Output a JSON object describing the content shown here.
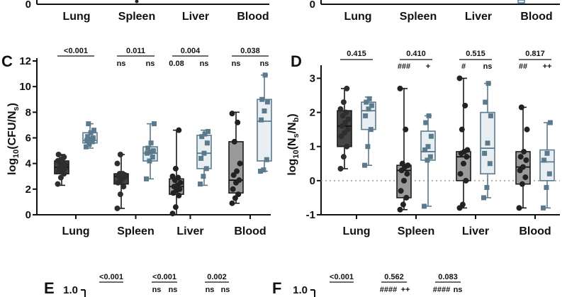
{
  "colors": {
    "dark_fill": "#464646",
    "dark_point": "#2e2e2e",
    "grey_fill": "#9a9a9a",
    "grey_point": "#222222",
    "blue_fill": "#e9eef2",
    "blue_point": "#5b7a8c",
    "blue_edge": "#5b7a8c",
    "dark_edge": "#1a1a1a"
  },
  "top_strip": {
    "left_categories": [
      "Lung",
      "Spleen",
      "Liver",
      "Blood"
    ],
    "right_categories": [
      "Lung",
      "Spleen",
      "Liver",
      "Blood"
    ],
    "left_tick": "0",
    "right_tick": "0"
  },
  "panels": {
    "C": {
      "label": "C"
    },
    "D": {
      "label": "D"
    },
    "E": {
      "label": "E",
      "tick": "1.0",
      "p_top": [
        "<0.001",
        "<0.001",
        "0.002"
      ],
      "sub": [
        [
          "",
          ""
        ],
        [
          "ns",
          "ns"
        ],
        [
          "ns",
          "ns"
        ]
      ]
    },
    "F": {
      "label": "F",
      "tick": "1.0",
      "p_top": [
        "<0.001",
        "0.562",
        "0.083"
      ],
      "sub": [
        [
          "",
          ""
        ],
        [
          "####",
          "++"
        ],
        [
          "####",
          "ns"
        ]
      ]
    }
  },
  "chart_data": [
    {
      "id": "C",
      "type": "box",
      "title": "",
      "xlabel": "",
      "ylabel": "log10(CFU/Ns)",
      "ylim": [
        0,
        12
      ],
      "yticks": [
        "0",
        "2",
        "4",
        "6",
        "8",
        "10",
        "12"
      ],
      "categories": [
        "Lung",
        "Spleen",
        "Liver",
        "Blood"
      ],
      "p_top": [
        "<0.001",
        "0.011",
        "0.004",
        "0.038"
      ],
      "p_sub": [
        [
          "",
          ""
        ],
        [
          "ns",
          "ns"
        ],
        [
          "0.08",
          "ns"
        ],
        [
          "ns",
          "ns"
        ]
      ],
      "series": [
        {
          "name": "circles",
          "boxes": [
            {
              "min": 2.3,
              "q1": 3.2,
              "median": 3.7,
              "q3": 4.2,
              "max": 4.7
            },
            {
              "min": 0.5,
              "q1": 2.4,
              "median": 3.0,
              "q3": 3.2,
              "max": 4.7
            },
            {
              "min": 0.0,
              "q1": 1.6,
              "median": 2.2,
              "q3": 2.8,
              "max": 6.6
            },
            {
              "min": 0.9,
              "q1": 1.7,
              "median": 2.7,
              "q3": 5.7,
              "max": 8.0
            }
          ],
          "points": [
            [
              2.4,
              2.9,
              3.2,
              3.4,
              3.5,
              3.6,
              3.7,
              3.8,
              3.9,
              4.0,
              4.1,
              4.2,
              4.3,
              4.5,
              4.7
            ],
            [
              0.5,
              1.6,
              2.2,
              2.5,
              2.7,
              2.9,
              3.0,
              3.0,
              3.1,
              3.2,
              3.2,
              4.0,
              4.7
            ],
            [
              0.1,
              0.6,
              1.5,
              1.7,
              1.9,
              2.0,
              2.2,
              2.3,
              2.5,
              2.7,
              2.9,
              3.0,
              3.6,
              6.6
            ],
            [
              0.9,
              1.3,
              1.6,
              2.0,
              2.5,
              2.7,
              3.1,
              3.4,
              4.0,
              5.7,
              7.2,
              7.9
            ]
          ]
        },
        {
          "name": "squares",
          "boxes": [
            {
              "min": 5.2,
              "q1": 5.6,
              "median": 5.8,
              "q3": 6.4,
              "max": 7.1
            },
            {
              "min": 2.8,
              "q1": 4.2,
              "median": 4.8,
              "q3": 5.3,
              "max": 7.1
            },
            {
              "min": 2.3,
              "q1": 3.6,
              "median": 4.8,
              "q3": 6.2,
              "max": 6.6
            },
            {
              "min": 3.4,
              "q1": 4.2,
              "median": 7.3,
              "q3": 9.0,
              "max": 10.9
            }
          ],
          "points": [
            [
              5.3,
              5.5,
              5.7,
              5.8,
              5.9,
              6.0,
              6.1,
              6.4,
              6.6,
              7.1
            ],
            [
              2.8,
              4.2,
              4.5,
              4.8,
              4.9,
              5.0,
              5.2,
              5.6,
              7.1
            ],
            [
              2.4,
              3.0,
              3.6,
              4.4,
              4.8,
              5.6,
              6.1,
              6.3,
              6.5
            ],
            [
              3.4,
              3.5,
              4.3,
              7.4,
              8.1,
              8.8,
              9.0,
              10.9
            ]
          ]
        }
      ]
    },
    {
      "id": "D",
      "type": "box",
      "title": "",
      "xlabel": "",
      "ylabel": "log10(Ns/Nb)",
      "ylim": [
        -1,
        3.3
      ],
      "yticks": [
        "-1",
        "0",
        "1",
        "2",
        "3"
      ],
      "reference_line": 0,
      "categories": [
        "Lung",
        "Spleen",
        "Liver",
        "Blood"
      ],
      "p_top": [
        "0.415",
        "0.410",
        "0.515",
        "0.817"
      ],
      "p_sub": [
        [
          "",
          ""
        ],
        [
          "###",
          "+"
        ],
        [
          "#",
          "ns"
        ],
        [
          "##",
          "++"
        ]
      ],
      "series": [
        {
          "name": "circles",
          "boxes": [
            {
              "min": 0.35,
              "q1": 1.0,
              "median": 1.6,
              "q3": 2.05,
              "max": 2.7
            },
            {
              "min": -0.85,
              "q1": -0.5,
              "median": 0.3,
              "q3": 0.45,
              "max": 2.7
            },
            {
              "min": -0.8,
              "q1": 0.0,
              "median": 0.7,
              "q3": 0.85,
              "max": 3.0
            },
            {
              "min": -0.8,
              "q1": -0.1,
              "median": 0.4,
              "q3": 0.85,
              "max": 2.15
            }
          ],
          "points": [
            [
              0.35,
              0.7,
              1.0,
              1.3,
              1.4,
              1.5,
              1.6,
              1.7,
              1.8,
              1.9,
              2.0,
              2.1,
              2.3,
              2.7
            ],
            [
              -0.85,
              -0.7,
              -0.5,
              -0.3,
              0.0,
              0.2,
              0.3,
              0.4,
              0.45,
              0.5,
              1.5,
              2.7
            ],
            [
              -0.8,
              -0.7,
              0.0,
              0.2,
              0.5,
              0.7,
              0.8,
              0.85,
              0.9,
              1.5,
              2.2,
              3.0
            ],
            [
              -0.8,
              -0.1,
              0.1,
              0.3,
              0.4,
              0.6,
              0.7,
              0.85,
              1.5,
              2.15
            ]
          ]
        },
        {
          "name": "squares",
          "boxes": [
            {
              "min": 0.45,
              "q1": 1.5,
              "median": 2.05,
              "q3": 2.3,
              "max": 2.45
            },
            {
              "min": -0.75,
              "q1": 0.6,
              "median": 0.85,
              "q3": 1.45,
              "max": 1.9
            },
            {
              "min": -0.5,
              "q1": 0.2,
              "median": 0.95,
              "q3": 2.0,
              "max": 2.85
            },
            {
              "min": -0.8,
              "q1": 0.0,
              "median": 0.55,
              "q3": 0.9,
              "max": 1.7
            }
          ],
          "points": [
            [
              0.45,
              1.0,
              1.5,
              1.9,
              2.1,
              2.2,
              2.3,
              2.4
            ],
            [
              -0.75,
              0.6,
              0.7,
              0.9,
              1.0,
              1.3,
              1.7,
              1.9
            ],
            [
              -0.5,
              -0.2,
              0.5,
              0.8,
              1.1,
              1.9,
              2.3,
              2.85
            ],
            [
              -0.8,
              -0.2,
              0.2,
              0.6,
              0.8,
              1.7
            ]
          ]
        }
      ]
    }
  ]
}
